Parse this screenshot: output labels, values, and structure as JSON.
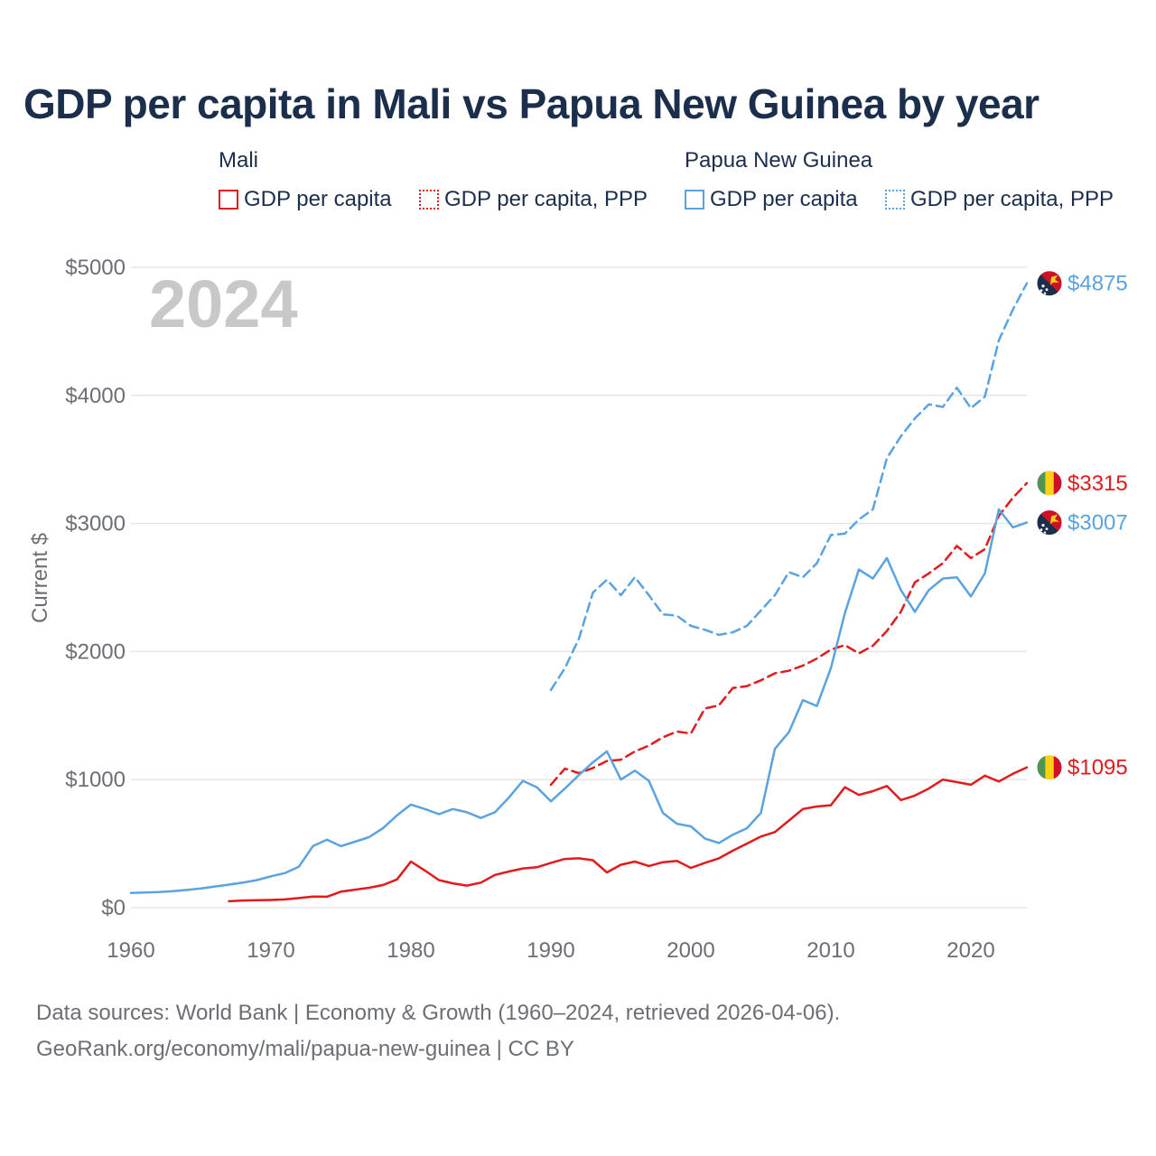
{
  "title": "GDP per capita in Mali vs Papua New Guinea by year",
  "legend": {
    "groups": [
      {
        "name": "Mali",
        "items": [
          {
            "label": "GDP per capita",
            "style": "solid",
            "color": "#e31a1c"
          },
          {
            "label": "GDP per capita, PPP",
            "style": "dotted",
            "color": "#e31a1c"
          }
        ]
      },
      {
        "name": "Papua New Guinea",
        "items": [
          {
            "label": "GDP per capita",
            "style": "solid",
            "color": "#5ba3e0"
          },
          {
            "label": "GDP per capita, PPP",
            "style": "dotted",
            "color": "#5ba3e0"
          }
        ]
      }
    ]
  },
  "footer": {
    "line1": "Data sources: World Bank | Economy & Growth (1960–2024, retrieved 2026-04-06).",
    "line2": "GeoRank.org/economy/mali/papua-new-guinea | CC BY"
  },
  "chart_data": {
    "type": "line",
    "year_label": "2024",
    "ylabel": "Current $",
    "xlabel": "",
    "xlim": [
      1960,
      2024
    ],
    "ylim": [
      0,
      5000
    ],
    "x_ticks": [
      1960,
      1970,
      1980,
      1990,
      2000,
      2010,
      2020
    ],
    "y_ticks": [
      0,
      1000,
      2000,
      3000,
      4000,
      5000
    ],
    "y_tick_labels": [
      "$0",
      "$1000",
      "$2000",
      "$3000",
      "$4000",
      "$5000"
    ],
    "grid": true,
    "series": [
      {
        "name": "Mali GDP per capita",
        "color": "#e31a1c",
        "dash": "solid",
        "flag": "mali",
        "end_label": "$1095",
        "x": [
          1967,
          1968,
          1969,
          1970,
          1971,
          1972,
          1973,
          1974,
          1975,
          1976,
          1977,
          1978,
          1979,
          1980,
          1981,
          1982,
          1983,
          1984,
          1985,
          1986,
          1987,
          1988,
          1989,
          1990,
          1991,
          1992,
          1993,
          1994,
          1995,
          1996,
          1997,
          1998,
          1999,
          2000,
          2001,
          2002,
          2003,
          2004,
          2005,
          2006,
          2007,
          2008,
          2009,
          2010,
          2011,
          2012,
          2013,
          2014,
          2015,
          2016,
          2017,
          2018,
          2019,
          2020,
          2021,
          2022,
          2023,
          2024
        ],
        "values": [
          50,
          56,
          58,
          60,
          64,
          75,
          86,
          85,
          125,
          140,
          155,
          176,
          220,
          360,
          290,
          215,
          190,
          172,
          195,
          255,
          282,
          306,
          315,
          350,
          380,
          385,
          370,
          275,
          335,
          360,
          325,
          355,
          365,
          310,
          350,
          385,
          445,
          500,
          555,
          590,
          680,
          770,
          790,
          800,
          940,
          880,
          910,
          950,
          840,
          875,
          930,
          1000,
          980,
          960,
          1030,
          985,
          1045,
          1095
        ]
      },
      {
        "name": "Mali GDP per capita, PPP",
        "color": "#e31a1c",
        "dash": "dashed",
        "flag": "mali",
        "end_label": "$3315",
        "x": [
          1990,
          1991,
          1992,
          1993,
          1994,
          1995,
          1996,
          1997,
          1998,
          1999,
          2000,
          2001,
          2002,
          2003,
          2004,
          2005,
          2006,
          2007,
          2008,
          2009,
          2010,
          2011,
          2012,
          2013,
          2014,
          2015,
          2016,
          2017,
          2018,
          2019,
          2020,
          2021,
          2022,
          2023,
          2024
        ],
        "values": [
          960,
          1085,
          1050,
          1090,
          1145,
          1155,
          1220,
          1265,
          1330,
          1375,
          1360,
          1555,
          1580,
          1715,
          1730,
          1775,
          1830,
          1850,
          1890,
          1945,
          2015,
          2050,
          1985,
          2045,
          2160,
          2310,
          2540,
          2610,
          2690,
          2825,
          2730,
          2800,
          3060,
          3200,
          3315
        ]
      },
      {
        "name": "Papua New Guinea GDP per capita",
        "color": "#5ba3e0",
        "dash": "solid",
        "flag": "png",
        "end_label": "$3007",
        "x": [
          1960,
          1961,
          1962,
          1963,
          1964,
          1965,
          1966,
          1967,
          1968,
          1969,
          1970,
          1971,
          1972,
          1973,
          1974,
          1975,
          1976,
          1977,
          1978,
          1979,
          1980,
          1981,
          1982,
          1983,
          1984,
          1985,
          1986,
          1987,
          1988,
          1989,
          1990,
          1991,
          1992,
          1993,
          1994,
          1995,
          1996,
          1997,
          1998,
          1999,
          2000,
          2001,
          2002,
          2003,
          2004,
          2005,
          2006,
          2007,
          2008,
          2009,
          2010,
          2011,
          2012,
          2013,
          2014,
          2015,
          2016,
          2017,
          2018,
          2019,
          2020,
          2021,
          2022,
          2023,
          2024
        ],
        "values": [
          115,
          118,
          122,
          128,
          138,
          150,
          165,
          180,
          195,
          215,
          245,
          270,
          320,
          480,
          530,
          480,
          515,
          550,
          620,
          720,
          805,
          770,
          730,
          770,
          745,
          700,
          745,
          860,
          990,
          940,
          830,
          930,
          1035,
          1135,
          1220,
          1000,
          1070,
          990,
          740,
          655,
          635,
          540,
          505,
          570,
          620,
          740,
          1240,
          1370,
          1620,
          1575,
          1870,
          2300,
          2640,
          2570,
          2730,
          2480,
          2310,
          2480,
          2570,
          2580,
          2430,
          2610,
          3110,
          2970,
          3007
        ]
      },
      {
        "name": "Papua New Guinea GDP per capita, PPP",
        "color": "#5ba3e0",
        "dash": "dashed",
        "flag": "png",
        "end_label": "$4875",
        "x": [
          1990,
          1991,
          1992,
          1993,
          1994,
          1995,
          1996,
          1997,
          1998,
          1999,
          2000,
          2001,
          2002,
          2003,
          2004,
          2005,
          2006,
          2007,
          2008,
          2009,
          2010,
          2011,
          2012,
          2013,
          2014,
          2015,
          2016,
          2017,
          2018,
          2019,
          2020,
          2021,
          2022,
          2023,
          2024
        ],
        "values": [
          1700,
          1870,
          2100,
          2460,
          2560,
          2440,
          2580,
          2440,
          2290,
          2280,
          2200,
          2170,
          2130,
          2150,
          2200,
          2320,
          2440,
          2620,
          2580,
          2690,
          2910,
          2920,
          3030,
          3110,
          3510,
          3680,
          3820,
          3930,
          3910,
          4060,
          3900,
          3990,
          4430,
          4670,
          4875
        ]
      }
    ]
  }
}
